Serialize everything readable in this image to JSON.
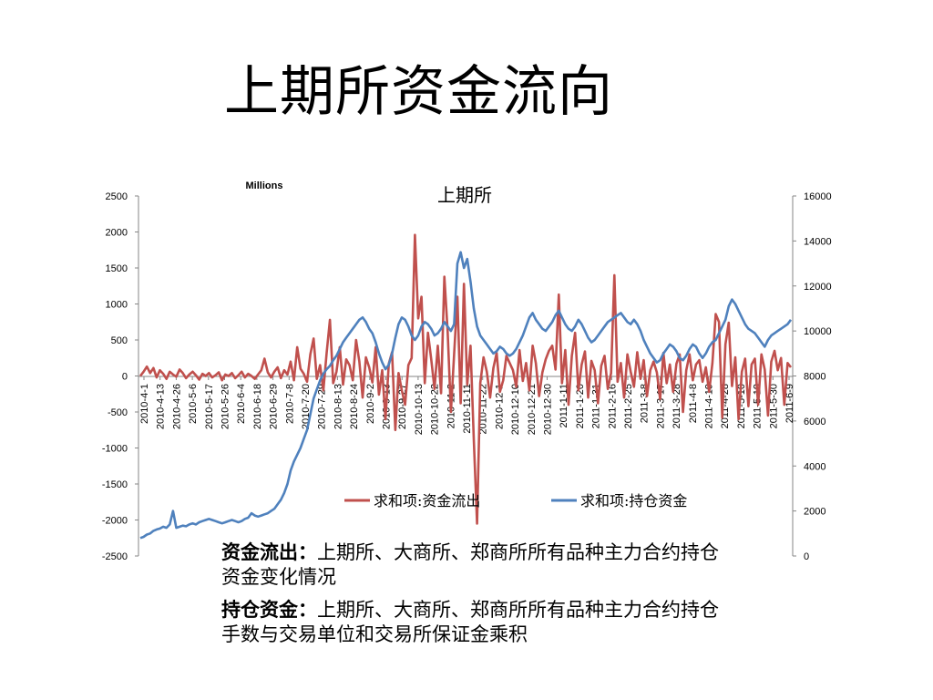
{
  "page": {
    "title": "上期所资金流向"
  },
  "chart_data": {
    "type": "line",
    "title": "上期所",
    "units_label": "Millions",
    "left_axis": {
      "ylim": [
        -2500,
        2500
      ],
      "ticks": [
        "2500",
        "2000",
        "1500",
        "1000",
        "500",
        "0",
        "-500",
        "-1000",
        "-1500",
        "-2000",
        "-2500"
      ]
    },
    "right_axis": {
      "ylim": [
        0,
        16000
      ],
      "ticks": [
        "16000",
        "14000",
        "12000",
        "10000",
        "8000",
        "6000",
        "4000",
        "2000",
        "0"
      ]
    },
    "x_ticks": [
      "2010-4-1",
      "2010-4-13",
      "2010-4-26",
      "2010-5-6",
      "2010-5-17",
      "2010-5-26",
      "2010-6-4",
      "2010-6-18",
      "2010-6-29",
      "2010-7-8",
      "2010-7-20",
      "2010-7-29",
      "2010-8-13",
      "2010-8-24",
      "2010-9-2",
      "2010-9-13",
      "2010-9-27",
      "2010-10-13",
      "2010-10-22",
      "2010-11-2",
      "2010-11-11",
      "2010-11-22",
      "2010-12-1",
      "2010-12-10",
      "2010-12-21",
      "2010-12-30",
      "2011-1-11",
      "2011-1-20",
      "2011-1-31",
      "2011-2-16",
      "2011-2-25",
      "2011-3-8",
      "2011-3-17",
      "2011-3-28",
      "2011-4-8",
      "2011-4-19",
      "2011-4-28",
      "2011-5-10",
      "2011-5-19",
      "2011-5-30",
      "2011-6-9"
    ],
    "legend_position": "inside-bottom",
    "series": [
      {
        "name": "求和项:资金流出",
        "axis": "left",
        "color": "#c0504d",
        "values": [
          0,
          60,
          130,
          40,
          110,
          -20,
          80,
          30,
          -40,
          60,
          20,
          -10,
          90,
          40,
          -30,
          20,
          60,
          10,
          -50,
          30,
          0,
          40,
          -20,
          10,
          50,
          -60,
          20,
          0,
          40,
          -30,
          10,
          60,
          -20,
          30,
          0,
          -40,
          20,
          80,
          240,
          50,
          -20,
          60,
          120,
          -30,
          80,
          20,
          200,
          -60,
          400,
          100,
          30,
          -80,
          300,
          520,
          -40,
          150,
          -200,
          320,
          780,
          -100,
          60,
          400,
          -120,
          230,
          150,
          -60,
          500,
          200,
          -300,
          260,
          120,
          -90,
          400,
          -260,
          80,
          -600,
          170,
          330,
          -750,
          40,
          -200,
          -400,
          150,
          250,
          1960,
          800,
          1100,
          -100,
          600,
          230,
          -180,
          420,
          -240,
          1380,
          620,
          -500,
          300,
          1100,
          -380,
          1280,
          -120,
          420,
          -880,
          -2050,
          -100,
          260,
          60,
          -300,
          110,
          320,
          -220,
          -60,
          280,
          180,
          80,
          -150,
          360,
          -70,
          180,
          -200,
          420,
          180,
          -280,
          50,
          230,
          350,
          420,
          90,
          1130,
          -100,
          360,
          -400,
          280,
          600,
          -200,
          160,
          340,
          -300,
          210,
          80,
          -380,
          140,
          280,
          -180,
          40,
          1400,
          -80,
          180,
          -300,
          300,
          60,
          -150,
          330,
          -40,
          220,
          -280,
          80,
          200,
          50,
          -320,
          320,
          -100,
          160,
          -220,
          170,
          300,
          -500,
          80,
          300,
          -60,
          160,
          220,
          -80,
          120,
          -220,
          180,
          860,
          750,
          -580,
          440,
          740,
          -140,
          260,
          -600,
          60,
          240,
          -420,
          160,
          240,
          -400,
          300,
          90,
          -550,
          200,
          350,
          80,
          250,
          -400,
          180,
          120
        ]
      },
      {
        "name": "求和项:持仓资金",
        "axis": "right",
        "color": "#4f81bd",
        "values": [
          800,
          850,
          950,
          1000,
          1120,
          1180,
          1220,
          1300,
          1250,
          1400,
          2000,
          1250,
          1300,
          1350,
          1320,
          1400,
          1450,
          1400,
          1500,
          1550,
          1600,
          1650,
          1600,
          1550,
          1500,
          1450,
          1500,
          1550,
          1600,
          1550,
          1500,
          1550,
          1650,
          1700,
          1900,
          1800,
          1750,
          1800,
          1850,
          1900,
          2000,
          2100,
          2300,
          2500,
          2800,
          3200,
          3800,
          4200,
          4500,
          4800,
          5200,
          5600,
          6300,
          7000,
          7400,
          7800,
          8100,
          8300,
          8450,
          8700,
          8900,
          9200,
          9500,
          9700,
          9900,
          10100,
          10300,
          10500,
          10600,
          10400,
          10100,
          9900,
          9500,
          9000,
          8600,
          8300,
          8500,
          9000,
          9700,
          10300,
          10600,
          10500,
          10200,
          9800,
          9600,
          9800,
          10200,
          10400,
          10300,
          10100,
          9800,
          9900,
          10100,
          10400,
          10200,
          10000,
          10300,
          13000,
          13500,
          12800,
          13200,
          12200,
          11000,
          10200,
          9800,
          9600,
          9400,
          9200,
          9000,
          9100,
          9300,
          9200,
          9000,
          8900,
          9000,
          9200,
          9500,
          9800,
          10200,
          10600,
          10800,
          10500,
          10300,
          10100,
          10000,
          10200,
          10400,
          10700,
          10900,
          10600,
          10300,
          10100,
          10000,
          10200,
          10500,
          10300,
          10000,
          9700,
          9500,
          9600,
          9800,
          10000,
          10200,
          10400,
          10500,
          10600,
          10700,
          10800,
          10600,
          10400,
          10300,
          10500,
          10300,
          10000,
          9600,
          9300,
          9000,
          8800,
          8600,
          8700,
          9000,
          9200,
          9400,
          9300,
          9100,
          8800,
          8700,
          8900,
          9200,
          9400,
          9300,
          9000,
          8800,
          9000,
          9300,
          9500,
          9600,
          9900,
          10200,
          10500,
          11100,
          11400,
          11200,
          10900,
          10600,
          10300,
          10100,
          10000,
          9900,
          9700,
          9500,
          9300,
          9600,
          9800,
          9900,
          10000,
          10100,
          10200,
          10300,
          10500
        ]
      }
    ]
  },
  "description": [
    {
      "label": "资金流出：",
      "text": "上期所、大商所、郑商所所有品种主力合约持仓资金变化情况"
    },
    {
      "label": "持仓资金：",
      "text": "上期所、大商所、郑商所所有品种主力合约持仓手数与交易单位和交易所保证金乘积"
    }
  ]
}
